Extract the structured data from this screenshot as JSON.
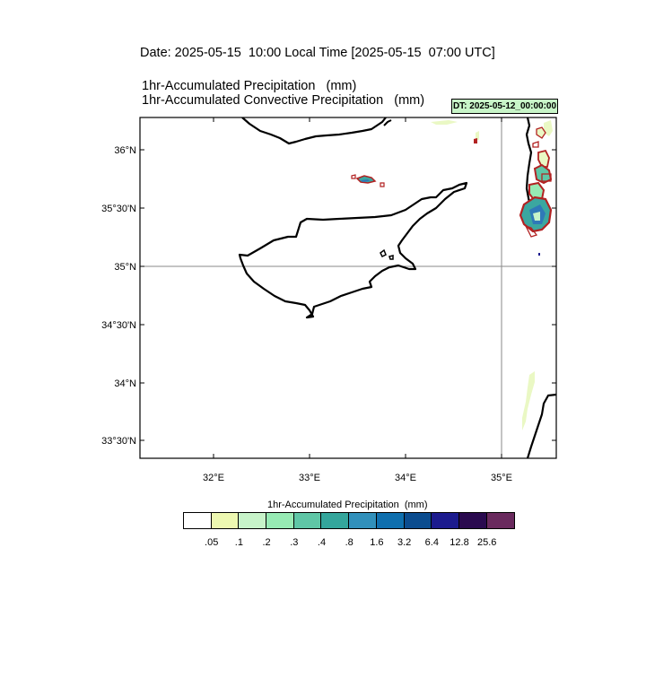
{
  "header": {
    "date_line": "Date: 2025-05-15  10:00 Local Time [2025-05-15  07:00 UTC]",
    "field_line_1": "1hr-Accumulated Precipitation   (mm)",
    "field_line_2": "1hr-Accumulated Convective Precipitation   (mm)",
    "dt_badge": "DT: 2025-05-12_00:00:00"
  },
  "map": {
    "lat_labels": [
      "36°N",
      "35°30'N",
      "35°N",
      "34°30'N",
      "34°N",
      "33°30'N"
    ],
    "lon_labels": [
      "32°E",
      "33°E",
      "34°E",
      "35°E"
    ],
    "gridline_lat": "35°N",
    "gridline_lon": "35°E",
    "colors": {
      "coastline": "#000000",
      "gridline": "#888888",
      "convective_contour": "#b22222",
      "precip_light": "#eaf8c4",
      "precip_mid": "#3ba7a0",
      "precip_heavy": "#2f79b8"
    }
  },
  "legend": {
    "title": "1hr-Accumulated Precipitation  (mm)",
    "colors": [
      "#ffffff",
      "#edf8b1",
      "#c7f3c9",
      "#97eab4",
      "#5fc6a6",
      "#34a69c",
      "#3190bb",
      "#0f6fae",
      "#0b4c8f",
      "#1c1b8e",
      "#2a0a4f",
      "#6a2a5e"
    ],
    "labels": [
      ".05",
      ".1",
      ".2",
      ".3",
      ".4",
      ".8",
      "1.6",
      "3.2",
      "6.4",
      "12.8",
      "25.6"
    ]
  }
}
